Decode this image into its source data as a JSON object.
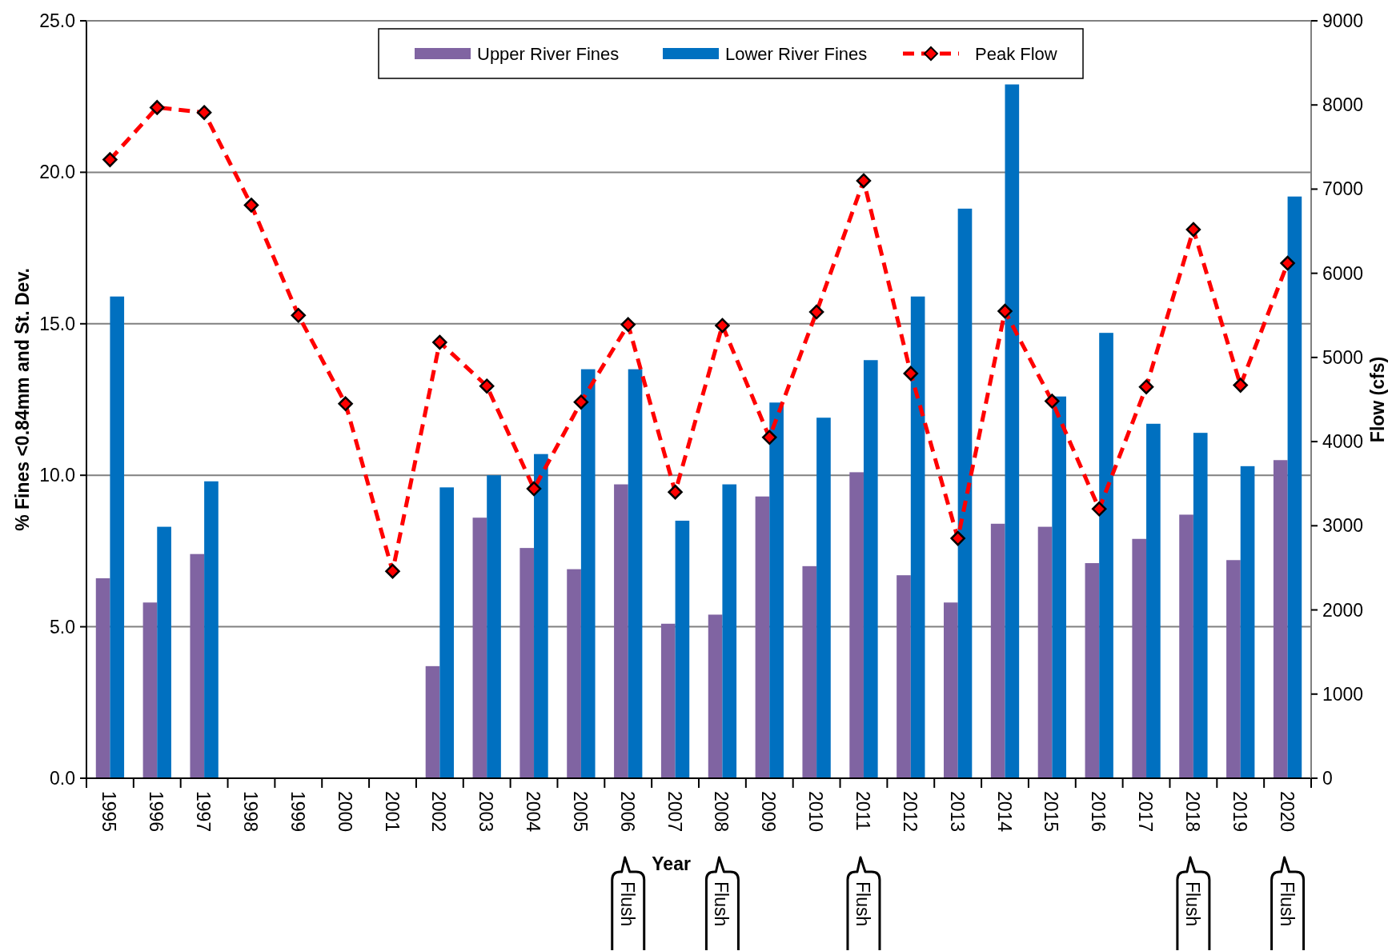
{
  "chart_data": {
    "type": "bar",
    "xlabel": "Year",
    "ylabel": "% Fines <0.84mm and St. Dev.",
    "y2label": "Flow (cfs)",
    "categories": [
      "1995",
      "1996",
      "1997",
      "1998",
      "1999",
      "2000",
      "2001",
      "2002",
      "2003",
      "2004",
      "2005",
      "2006",
      "2007",
      "2008",
      "2009",
      "2010",
      "2011",
      "2012",
      "2013",
      "2014",
      "2015",
      "2016",
      "2017",
      "2018",
      "2019",
      "2020"
    ],
    "series": [
      {
        "name": "Upper River Fines",
        "color": "#8064a2",
        "values": [
          6.6,
          5.8,
          7.4,
          null,
          null,
          null,
          null,
          3.7,
          8.6,
          7.6,
          6.9,
          9.7,
          5.1,
          5.4,
          9.3,
          7.0,
          10.1,
          6.7,
          5.8,
          8.4,
          8.3,
          7.1,
          7.9,
          8.7,
          7.2,
          10.5
        ]
      },
      {
        "name": "Lower River Fines",
        "color": "#0070c0",
        "values": [
          15.9,
          8.3,
          9.8,
          null,
          null,
          null,
          null,
          9.6,
          10.0,
          10.7,
          13.5,
          13.5,
          8.5,
          9.7,
          12.4,
          11.9,
          13.8,
          15.9,
          18.8,
          22.9,
          12.6,
          14.7,
          11.7,
          11.4,
          10.3,
          19.2
        ]
      },
      {
        "name": "Peak Flow",
        "type": "line",
        "axis": "y2",
        "color": "#ff0000",
        "line_style": "dashed",
        "marker": "diamond",
        "values": [
          7350,
          7970,
          7910,
          6810,
          5500,
          4450,
          2460,
          5180,
          4660,
          3440,
          4470,
          5390,
          3400,
          5380,
          4050,
          5540,
          7100,
          4810,
          2850,
          5550,
          4480,
          3200,
          4650,
          6520,
          4670,
          6120
        ]
      }
    ],
    "ylim": [
      0,
      25
    ],
    "yticks": [
      {
        "value": 0,
        "label": "0.0"
      },
      {
        "value": 5,
        "label": "5.0"
      },
      {
        "value": 10,
        "label": "10.0"
      },
      {
        "value": 15,
        "label": "15.0"
      },
      {
        "value": 20,
        "label": "20.0"
      },
      {
        "value": 25,
        "label": "25.0"
      }
    ],
    "y2lim": [
      0,
      9000
    ],
    "y2ticks": [
      0,
      1000,
      2000,
      3000,
      4000,
      5000,
      6000,
      7000,
      8000,
      9000
    ],
    "grid": "y",
    "legend": "top",
    "annotations": [
      "Flush",
      "Flush",
      "Flush",
      "Flush",
      "Flush"
    ]
  }
}
